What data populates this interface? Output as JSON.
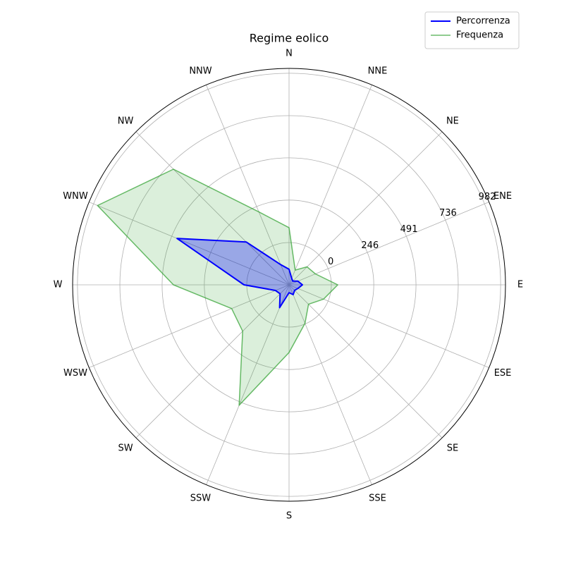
{
  "chart_data": {
    "type": "radar",
    "title": "Regime eolico",
    "categories": [
      "N",
      "NNE",
      "NE",
      "ENE",
      "E",
      "ESE",
      "SE",
      "SSE",
      "S",
      "SSW",
      "SW",
      "WSW",
      "W",
      "WNW",
      "NW",
      "NNW"
    ],
    "series": [
      {
        "name": "Percorrenza",
        "color": "#0000ff",
        "values": [
          -155,
          -205,
          -215,
          -190,
          -168,
          -190,
          -200,
          -184,
          -200,
          -102,
          -172,
          -160,
          16,
          458,
          106,
          -119
        ]
      },
      {
        "name": "Frequenza",
        "color": "#2ca02c",
        "values": [
          86,
          -153,
          -98,
          -80,
          37,
          -29,
          -86,
          -4,
          147,
          511,
          135,
          115,
          425,
          957,
          703,
          212
        ]
      }
    ],
    "ylim": [
      -245.5,
      1010
    ],
    "yticks": [
      0,
      246,
      491,
      736,
      982
    ],
    "grid": true,
    "legend": "upper right"
  }
}
